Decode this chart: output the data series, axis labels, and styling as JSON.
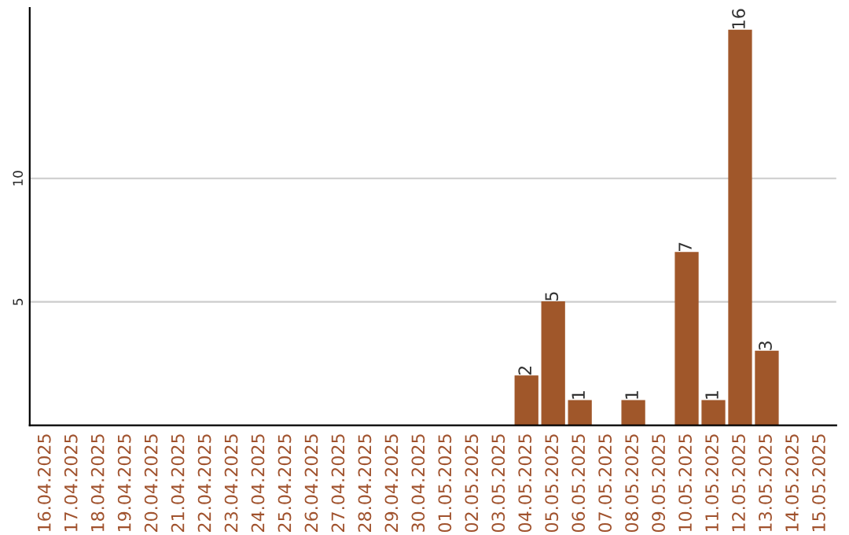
{
  "chart_data": {
    "type": "bar",
    "categories": [
      "16.04.2025",
      "17.04.2025",
      "18.04.2025",
      "19.04.2025",
      "20.04.2025",
      "21.04.2025",
      "22.04.2025",
      "23.04.2025",
      "24.04.2025",
      "25.04.2025",
      "26.04.2025",
      "27.04.2025",
      "28.04.2025",
      "29.04.2025",
      "30.04.2025",
      "01.05.2025",
      "02.05.2025",
      "03.05.2025",
      "04.05.2025",
      "05.05.2025",
      "06.05.2025",
      "07.05.2025",
      "08.05.2025",
      "09.05.2025",
      "10.05.2025",
      "11.05.2025",
      "12.05.2025",
      "13.05.2025",
      "14.05.2025",
      "15.05.2025"
    ],
    "values": [
      0,
      0,
      0,
      0,
      0,
      0,
      0,
      0,
      0,
      0,
      0,
      0,
      0,
      0,
      0,
      0,
      0,
      0,
      2,
      5,
      1,
      0,
      1,
      0,
      7,
      1,
      16,
      3,
      0,
      0
    ],
    "value_labels": [
      null,
      null,
      null,
      null,
      null,
      null,
      null,
      null,
      null,
      null,
      null,
      null,
      null,
      null,
      null,
      null,
      null,
      null,
      "2",
      "5",
      "1",
      null,
      "1",
      null,
      "7",
      "1",
      "16",
      "3",
      null,
      null
    ],
    "color": "#a0572a",
    "ylim": [
      0,
      16.9
    ],
    "yticks": [
      5,
      10
    ],
    "grid": "y",
    "legend": false
  }
}
